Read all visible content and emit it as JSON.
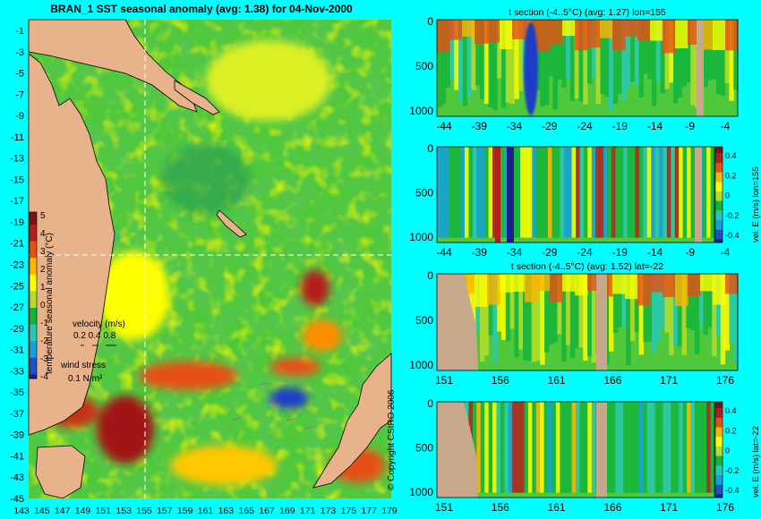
{
  "colors": {
    "background": "#00ffff",
    "land": "#e8b28a",
    "section_land": "#c8a88a",
    "scale": [
      "#1e1e8c",
      "#1e4ec8",
      "#14a0dc",
      "#28c8b4",
      "#14b43c",
      "#b4dc28",
      "#ffff00",
      "#ffb400",
      "#e65014",
      "#b41e1e",
      "#781414"
    ]
  },
  "map": {
    "title": "BRAN_1 SST seasonal anomaly (avg: 1.38) for 04-Nov-2000",
    "lat_ticks": [
      "-1",
      "-3",
      "-5",
      "-7",
      "-9",
      "-11",
      "-13",
      "-15",
      "-17",
      "-19",
      "-21",
      "-23",
      "-25",
      "-27",
      "-29",
      "-31",
      "-33",
      "-35",
      "-37",
      "-39",
      "-41",
      "-43",
      "-45"
    ],
    "lon_ticks": [
      "143",
      "145",
      "147",
      "149",
      "151",
      "153",
      "155",
      "157",
      "159",
      "161",
      "163",
      "165",
      "167",
      "169",
      "171",
      "173",
      "175",
      "177",
      "179"
    ],
    "colorbar": {
      "label": "temperature seasonal anomaly (°C)",
      "ticks": [
        "5",
        "4",
        "3",
        "2",
        "1",
        "0",
        "-1",
        "-2",
        "-3",
        "-4"
      ]
    },
    "velocity_legend": {
      "label": "velocity (m/s)",
      "values": "0.2 0.4 0.8"
    },
    "wind_legend": {
      "label": "wind stress",
      "value": "0.1 N/m²"
    },
    "section_lon": 155,
    "section_lat": -22
  },
  "sections": [
    {
      "id": "t-lon",
      "title": "t section (-4..5°C) (avg: 1.27) lon=155",
      "x_ticks": [
        "-44",
        "-39",
        "-34",
        "-29",
        "-24",
        "-19",
        "-14",
        "-9",
        "-4"
      ],
      "y_ticks": [
        "0",
        "500",
        "1000"
      ]
    },
    {
      "id": "u-lon",
      "title": "",
      "x_ticks": [
        "-44",
        "-39",
        "-34",
        "-29",
        "-24",
        "-19",
        "-14",
        "-9",
        "-4"
      ],
      "y_ticks": [
        "0",
        "500",
        "1000"
      ],
      "colorbar": {
        "label": "vel. E (m/s) lon=155",
        "ticks": [
          "0.4",
          "0.2",
          "0",
          "-0.2",
          "-0.4"
        ]
      }
    },
    {
      "id": "t-lat",
      "title": "t section (-4..5°C) (avg: 1.52) lat=-22",
      "x_ticks": [
        "151",
        "156",
        "161",
        "166",
        "171",
        "176"
      ],
      "y_ticks": [
        "0",
        "500",
        "1000"
      ]
    },
    {
      "id": "u-lat",
      "title": "",
      "x_ticks": [
        "151",
        "156",
        "161",
        "166",
        "171",
        "176"
      ],
      "y_ticks": [
        "0",
        "500",
        "1000"
      ],
      "colorbar": {
        "label": "vel. E (m/s) lat=-22",
        "ticks": [
          "0.4",
          "0.2",
          "0",
          "-0.2",
          "-0.4"
        ]
      }
    }
  ],
  "copyright": "© Copyright CSIRO 2006"
}
